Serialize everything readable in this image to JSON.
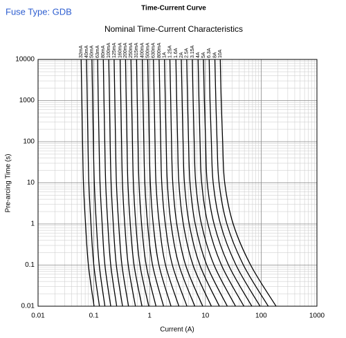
{
  "chart_data": {
    "type": "line",
    "annotation": "Fuse Type: GDB",
    "title": "Time-Current Curve",
    "subtitle": "Nominal Time-Current Characteristics",
    "x_label": "Current (A)",
    "y_label": "Pre-arcing Time (s)",
    "log_x": true,
    "log_y": true,
    "grid": true,
    "minor_grid": true,
    "color": "#000000",
    "xlim": [
      0.01,
      1000
    ],
    "xticks": [
      0.01,
      0.1,
      1,
      10,
      100,
      1000
    ],
    "ylim": [
      0.01,
      10000
    ],
    "yticks": [
      0.01,
      0.1,
      1,
      10,
      100,
      1000,
      10000
    ],
    "series": [
      {
        "name": "32mA",
        "x": [
          0.0592,
          0.061,
          0.0628,
          0.0651,
          0.071,
          0.0799,
          0.101
        ],
        "values": [
          10000,
          1000,
          100,
          10,
          1,
          0.1,
          0.01
        ]
      },
      {
        "name": "40mA",
        "x": [
          0.074,
          0.0762,
          0.0784,
          0.0814,
          0.0888,
          0.0999,
          0.126
        ],
        "values": [
          10000,
          1000,
          100,
          10,
          1,
          0.1,
          0.01
        ]
      },
      {
        "name": "50mA",
        "x": [
          0.0925,
          0.0953,
          0.098,
          0.102,
          0.111,
          0.125,
          0.158
        ],
        "values": [
          10000,
          1000,
          100,
          10,
          1,
          0.1,
          0.01
        ]
      },
      {
        "name": "63mA",
        "x": [
          0.117,
          0.12,
          0.124,
          0.129,
          0.141,
          0.158,
          0.201
        ],
        "values": [
          10000,
          1000,
          100,
          10,
          1,
          0.1,
          0.01
        ]
      },
      {
        "name": "80mA",
        "x": [
          0.148,
          0.152,
          0.157,
          0.163,
          0.178,
          0.201,
          0.257
        ],
        "values": [
          10000,
          1000,
          100,
          10,
          1,
          0.1,
          0.01
        ]
      },
      {
        "name": "100mA",
        "x": [
          0.185,
          0.191,
          0.196,
          0.204,
          0.223,
          0.253,
          0.327
        ],
        "values": [
          10000,
          1000,
          100,
          10,
          1,
          0.1,
          0.01
        ]
      },
      {
        "name": "125mA",
        "x": [
          0.231,
          0.238,
          0.245,
          0.254,
          0.279,
          0.319,
          0.419
        ],
        "values": [
          10000,
          1000,
          100,
          10,
          1,
          0.1,
          0.01
        ]
      },
      {
        "name": "160mA",
        "x": [
          0.296,
          0.305,
          0.314,
          0.326,
          0.358,
          0.414,
          0.557
        ],
        "values": [
          10000,
          1000,
          100,
          10,
          1,
          0.1,
          0.01
        ]
      },
      {
        "name": "200mA",
        "x": [
          0.37,
          0.381,
          0.393,
          0.408,
          0.45,
          0.526,
          0.73
        ],
        "values": [
          10000,
          1000,
          100,
          10,
          1,
          0.1,
          0.01
        ]
      },
      {
        "name": "250mA",
        "x": [
          0.463,
          0.477,
          0.492,
          0.512,
          0.566,
          0.671,
          0.967
        ],
        "values": [
          10000,
          1000,
          100,
          10,
          1,
          0.1,
          0.01
        ]
      },
      {
        "name": "315mA",
        "x": [
          0.583,
          0.6,
          0.62,
          0.645,
          0.718,
          0.868,
          1.3
        ],
        "values": [
          10000,
          1000,
          100,
          10,
          1,
          0.1,
          0.01
        ]
      },
      {
        "name": "400mA",
        "x": [
          0.74,
          0.762,
          0.787,
          0.821,
          0.92,
          1.13,
          1.78
        ],
        "values": [
          10000,
          1000,
          100,
          10,
          1,
          0.1,
          0.01
        ]
      },
      {
        "name": "500mA",
        "x": [
          0.925,
          0.954,
          0.984,
          1.03,
          1.16,
          1.47,
          2.42
        ],
        "values": [
          10000,
          1000,
          100,
          10,
          1,
          0.1,
          0.01
        ]
      },
      {
        "name": "630mA",
        "x": [
          1.17,
          1.21,
          1.25,
          1.3,
          1.49,
          1.93,
          3.35
        ],
        "values": [
          10000,
          1000,
          100,
          10,
          1,
          0.1,
          0.01
        ]
      },
      {
        "name": "800mA",
        "x": [
          1.48,
          1.53,
          1.58,
          1.65,
          1.91,
          2.56,
          4.67
        ],
        "values": [
          10000,
          1000,
          100,
          10,
          1,
          0.1,
          0.01
        ]
      },
      {
        "name": "1A",
        "x": [
          1.85,
          1.91,
          1.98,
          2.08,
          2.42,
          3.36,
          6.46
        ],
        "values": [
          10000,
          1000,
          100,
          10,
          1,
          0.1,
          0.01
        ]
      },
      {
        "name": "1.25A",
        "x": [
          2.31,
          2.39,
          2.47,
          2.6,
          3.07,
          4.42,
          8.95
        ],
        "values": [
          10000,
          1000,
          100,
          10,
          1,
          0.1,
          0.01
        ]
      },
      {
        "name": "1.6A",
        "x": [
          2.96,
          3.06,
          3.18,
          3.35,
          4.02,
          6.0,
          12.8
        ],
        "values": [
          10000,
          1000,
          100,
          10,
          1,
          0.1,
          0.01
        ]
      },
      {
        "name": "2A",
        "x": [
          3.7,
          3.83,
          3.98,
          4.21,
          5.13,
          7.96,
          17.8
        ],
        "values": [
          10000,
          1000,
          100,
          10,
          1,
          0.1,
          0.01
        ]
      },
      {
        "name": "2.5A",
        "x": [
          4.63,
          4.79,
          4.99,
          5.3,
          6.57,
          10.6,
          24.7
        ],
        "values": [
          10000,
          1000,
          100,
          10,
          1,
          0.1,
          0.01
        ]
      },
      {
        "name": "3.15A",
        "x": [
          5.83,
          6.03,
          6.3,
          6.71,
          8.49,
          14.3,
          34.7
        ],
        "values": [
          10000,
          1000,
          100,
          10,
          1,
          0.1,
          0.01
        ]
      },
      {
        "name": "4A",
        "x": [
          7.4,
          7.67,
          8.02,
          8.58,
          11.1,
          19.4,
          49.0
        ],
        "values": [
          10000,
          1000,
          100,
          10,
          1,
          0.1,
          0.01
        ]
      },
      {
        "name": "5A",
        "x": [
          9.25,
          9.59,
          10.1,
          10.8,
          14.3,
          26.0,
          68.0
        ],
        "values": [
          10000,
          1000,
          100,
          10,
          1,
          0.1,
          0.01
        ]
      },
      {
        "name": "6.3A",
        "x": [
          11.7,
          12.1,
          12.8,
          13.8,
          18.6,
          35.4,
          95.5
        ],
        "values": [
          10000,
          1000,
          100,
          10,
          1,
          0.1,
          0.01
        ]
      },
      {
        "name": "8A",
        "x": [
          14.8,
          15.4,
          16.2,
          17.6,
          24.3,
          48.1,
          134
        ],
        "values": [
          10000,
          1000,
          100,
          10,
          1,
          0.1,
          0.01
        ]
      },
      {
        "name": "10A",
        "x": [
          18.5,
          19.2,
          20.4,
          22.2,
          31.5,
          64.8,
          185
        ],
        "values": [
          10000,
          1000,
          100,
          10,
          1,
          0.1,
          0.01
        ]
      }
    ]
  }
}
